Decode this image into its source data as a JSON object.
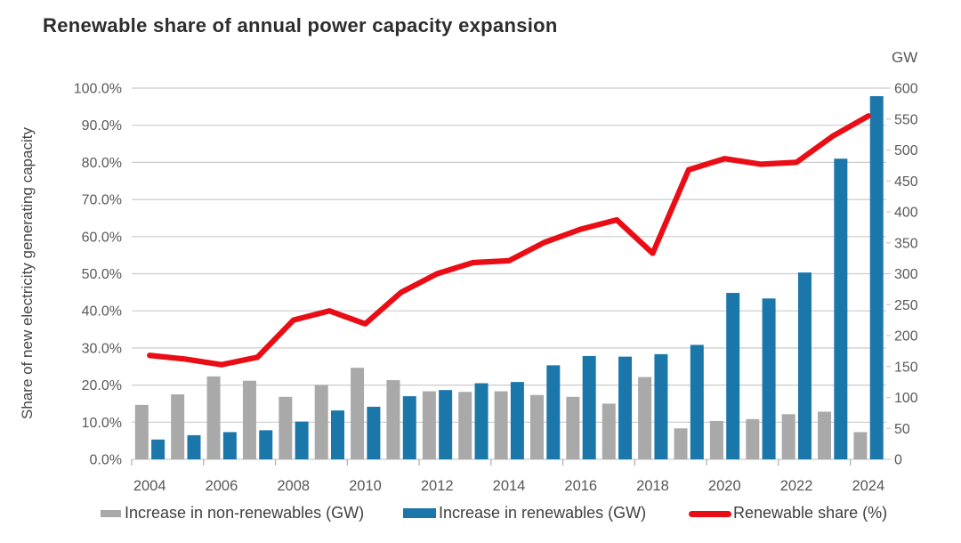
{
  "title": "Renewable share of annual power capacity expansion",
  "chart_data": {
    "type": "combo",
    "title": "Renewable share of annual power capacity expansion",
    "categories": [
      2004,
      2005,
      2006,
      2007,
      2008,
      2009,
      2010,
      2011,
      2012,
      2013,
      2014,
      2015,
      2016,
      2017,
      2018,
      2019,
      2020,
      2021,
      2022,
      2023,
      2024
    ],
    "x_tick_labels": [
      "2004",
      "2006",
      "2008",
      "2010",
      "2012",
      "2014",
      "2016",
      "2018",
      "2020",
      "2022",
      "2024"
    ],
    "series": [
      {
        "name": "Increase in non-renewables (GW)",
        "type": "bar",
        "axis": "right",
        "color": "#a9a9a9",
        "values": [
          88,
          105,
          134,
          127,
          101,
          120,
          148,
          128,
          110,
          109,
          110,
          104,
          101,
          90,
          133,
          50,
          62,
          65,
          73,
          77,
          44
        ]
      },
      {
        "name": "Increase in renewables (GW)",
        "type": "bar",
        "axis": "right",
        "color": "#1b77aa",
        "values": [
          32,
          39,
          44,
          47,
          61,
          79,
          85,
          102,
          112,
          123,
          125,
          152,
          167,
          166,
          170,
          185,
          269,
          260,
          302,
          486,
          587
        ]
      },
      {
        "name": "Renewable share (%)",
        "type": "line",
        "axis": "left",
        "color": "#ea0d15",
        "values": [
          28,
          27,
          25.5,
          27.5,
          37.5,
          40,
          36.5,
          45,
          50,
          53,
          53.5,
          58.5,
          62,
          64.5,
          55.5,
          78,
          81,
          79.5,
          80,
          87,
          92.5
        ]
      }
    ],
    "left_axis": {
      "title": "Share of new electricity generating capacity",
      "min": 0,
      "max": 100,
      "ticks": [
        "0.0%",
        "10.0%",
        "20.0%",
        "30.0%",
        "40.0%",
        "50.0%",
        "60.0%",
        "70.0%",
        "80.0%",
        "90.0%",
        "100.0%"
      ]
    },
    "right_axis": {
      "title": "GW",
      "min": 0,
      "max": 600,
      "ticks": [
        "0",
        "50",
        "100",
        "150",
        "200",
        "250",
        "300",
        "350",
        "400",
        "450",
        "500",
        "550",
        "600"
      ]
    },
    "grid": true,
    "legend_position": "bottom"
  },
  "legend": {
    "items": [
      {
        "label": "Increase in non-renewables (GW)",
        "color": "#a9a9a9"
      },
      {
        "label": "Increase in renewables (GW)",
        "color": "#1b77aa"
      },
      {
        "label": "Renewable share (%)",
        "color": "#ea0d15"
      }
    ]
  },
  "colors": {
    "grid": "#cbcbcb",
    "axis_text": "#595959",
    "tick": "#adadad",
    "title_text": "#2d2d2d"
  }
}
